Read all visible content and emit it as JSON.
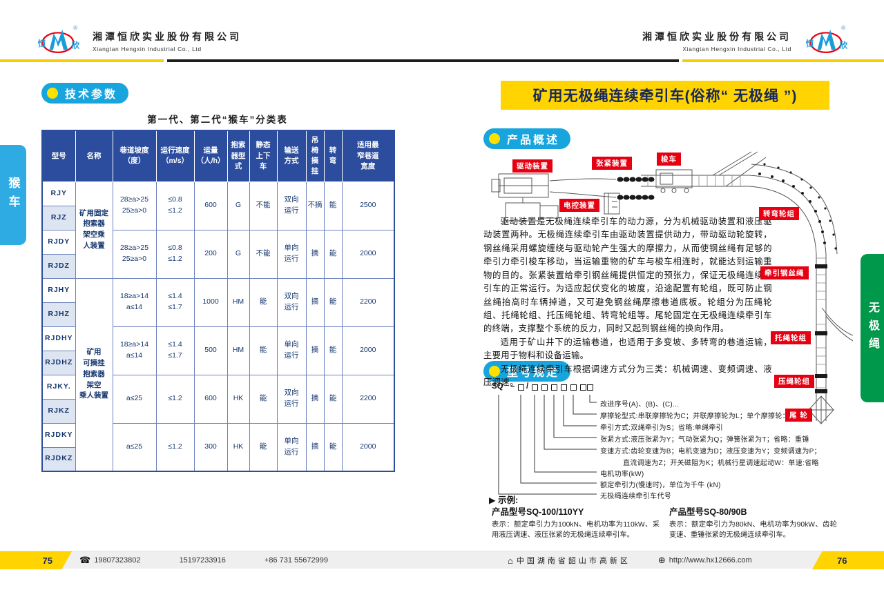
{
  "header": {
    "company_cn": "湘潭恒欣实业股份有限公司",
    "company_en": "Xiangtan Hengxin Industrial Co., Ltd",
    "brand_left": "恒",
    "brand_right": "欣",
    "reg_mark": "®"
  },
  "left_page": {
    "side_tab": "猴车",
    "section_title": "技术参数",
    "table_title": "第一代、第二代“猴车”分类表",
    "table": {
      "headers": [
        "型号",
        "名称",
        "巷道坡度\n（度）",
        "运行速度\n（m/s）",
        "运量\n（人/h）",
        "抱索\n器型\n式",
        "静态\n上下\n车",
        "输送\n方式",
        "吊\n椅\n摘\n挂",
        "转\n弯",
        "适用最\n窄巷道\n宽度"
      ],
      "models": [
        "RJY",
        "RJZ",
        "RJDY",
        "RJDZ",
        "RJHY",
        "RJHZ",
        "RJDHY",
        "RJDHZ",
        "RJKY.",
        "RJKZ",
        "RJDKY",
        "RJDKZ"
      ],
      "name_groups": [
        {
          "name": "矿用固定\n抱索器\n架空乘\n人装置",
          "rows": 4
        },
        {
          "name": "矿用\n可摘挂\n抱索器\n架空\n乘人装置",
          "rows": 8
        }
      ],
      "data_groups": [
        {
          "slope": "28≥a>25\n25≥a>0",
          "speed": "≤0.8\n≤1.2",
          "capacity": "600",
          "grip": "G",
          "static_board": "不能",
          "convey": "双向\n运行",
          "detach": "不摘",
          "turn": "能",
          "min_width": "2500"
        },
        {
          "slope": "28≥a>25\n25≥a>0",
          "speed": "≤0.8\n≤1.2",
          "capacity": "200",
          "grip": "G",
          "static_board": "不能",
          "convey": "单向\n运行",
          "detach": "摘",
          "turn": "能",
          "min_width": "2000"
        },
        {
          "slope": "18≥a>14\na≤14",
          "speed": "≤1.4\n≤1.7",
          "capacity": "1000",
          "grip": "HM",
          "static_board": "能",
          "convey": "双向\n运行",
          "detach": "摘",
          "turn": "能",
          "min_width": "2200"
        },
        {
          "slope": "18≥a>14\na≤14",
          "speed": "≤1.4\n≤1.7",
          "capacity": "500",
          "grip": "HM",
          "static_board": "能",
          "convey": "单向\n运行",
          "detach": "摘",
          "turn": "能",
          "min_width": "2000"
        },
        {
          "slope": "a≤25",
          "speed": "≤1.2",
          "capacity": "600",
          "grip": "HK",
          "static_board": "能",
          "convey": "双向\n运行",
          "detach": "摘",
          "turn": "能",
          "min_width": "2200"
        },
        {
          "slope": "a≤25",
          "speed": "≤1.2",
          "capacity": "300",
          "grip": "HK",
          "static_board": "能",
          "convey": "单向\n运行",
          "detach": "摘",
          "turn": "能",
          "min_width": "2000"
        }
      ]
    }
  },
  "right_page": {
    "side_tab": "无极绳",
    "title": "矿用无极绳连续牵引车(俗称“ 无极绳 ”)",
    "section_overview": "产品概述",
    "paragraphs": [
      "驱动装置是无极绳连续牵引车的动力源，分为机械驱动装置和液压驱动装置两种。无极绳连续牵引车由驱动装置提供动力，带动驱动轮旋转，钢丝绳采用螺旋缠绕与驱动轮产生强大的摩擦力，从而使钢丝绳有足够的牵引力牵引梭车移动，当运输重物的矿车与梭车相连时，就能达到运输重物的目的。张紧装置给牵引钢丝绳提供恒定的预张力，保证无极绳连续牵引车的正常运行。为适应起伏变化的坡度，沿途配置有轮组，既可防止钢丝绳抬高时车辆掉道，又可避免钢丝绳摩擦巷道底板。轮组分为压绳轮组、托绳轮组、托压绳轮组、转弯轮组等。尾轮固定在无极绳连续牵引车的终端，支撑整个系统的反力，同时又起到钢丝绳的换向作用。",
      "适用于矿山井下的运输巷道，也适用于多变坡、多转弯的巷道运输，主要用于物料和设备运输。",
      "无极绳连续牵引车根据调速方式分为三类：机械调速、变频调速、液压调速。"
    ],
    "diagram_labels": [
      "驱动装置",
      "张紧装置",
      "梭车",
      "电控装置",
      "转弯轮组",
      "牵引钢丝绳",
      "托绳轮组",
      "压绳轮组",
      "尾 轮"
    ],
    "section_model": "型号规定",
    "model_code_prefix": "SQ",
    "model_code_dash": "–",
    "model_code_slash": "/",
    "code_lines": [
      "改进序号(A)、(B)、(C)...",
      "摩擦轮型式:串联摩擦轮为C；并联摩擦轮为L；单个摩擦轮：省略",
      "牵引方式:双绳牵引为S；省略:单绳牵引",
      "张紧方式:液压张紧为Y；气动张紧为Q；弹簧张紧为T；省略：重锤",
      "变速方式:齿轮变速为B；电机变速为D；液压变速为Y；变频调速为P；",
      "直流调速为Z；开关磁阻为K；机械行星调速起动W：单速:省略",
      "电机功率(kW)",
      "额定牵引力(慢速时)，单位为千牛 (kN)",
      "无极绳连续牵引车代号"
    ],
    "example_heading": "▶ 示例:",
    "examples": [
      {
        "model": "产品型号SQ-100/110YY",
        "desc": "表示：额定牵引力为100kN、电机功率为110kW、采用液压调速、液压张紧的无极绳连续牵引车。"
      },
      {
        "model": "产品型号SQ-80/90B",
        "desc": "表示：额定牵引力为80kN、电机功率为90kW、齿轮变速、重锤张紧的无极绳连续牵引车。"
      }
    ]
  },
  "footer": {
    "page_left": "75",
    "page_right": "76",
    "phone_icon": "☎",
    "phones": [
      "19807323802",
      "15197233916",
      "+86  731  55672999"
    ],
    "address_icon": "⌂",
    "address": "中国湖南省韶山市高新区",
    "web_icon": "⊕",
    "website": "http://www.hx12666.com"
  },
  "colors": {
    "accent_blue": "#18a4dd",
    "navy": "#16275c",
    "yellow": "#ffd400",
    "red": "#e60012",
    "green": "#00984a",
    "table_header_blue": "#2c4d9d",
    "tab_blue": "#2eabe2"
  }
}
